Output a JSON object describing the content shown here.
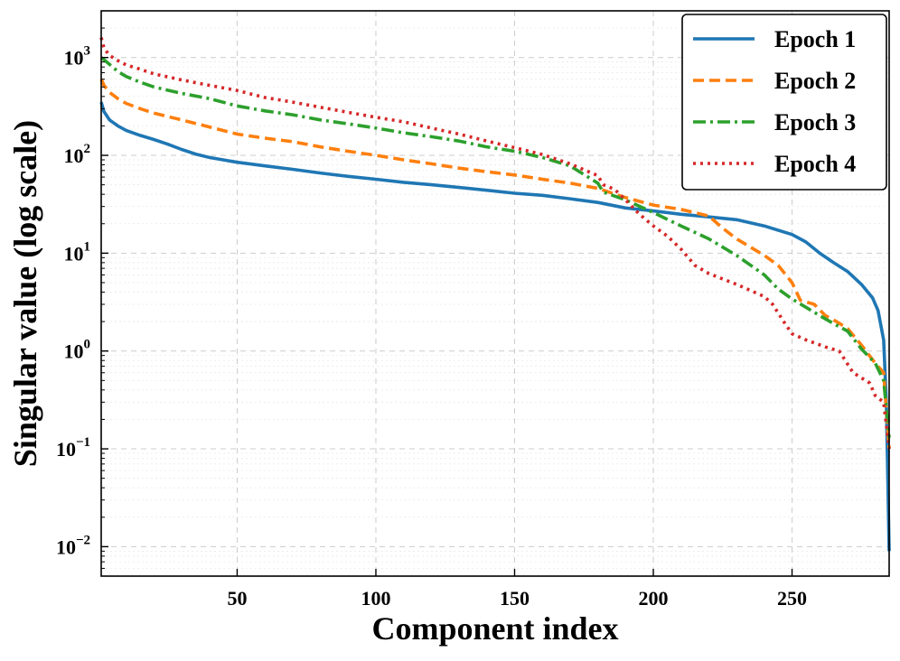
{
  "chart_data": {
    "type": "line",
    "title": "",
    "xlabel": "Component index",
    "ylabel": "Singular value (log scale)",
    "yscale": "log",
    "xlim": [
      1,
      285
    ],
    "ylim": [
      0.005,
      3000
    ],
    "xticks": [
      50,
      100,
      150,
      200,
      250
    ],
    "yticks": [
      {
        "value": 0.01,
        "base": "10",
        "exp": "−2"
      },
      {
        "value": 0.1,
        "base": "10",
        "exp": "−1"
      },
      {
        "value": 1,
        "base": "10",
        "exp": "0"
      },
      {
        "value": 10,
        "base": "10",
        "exp": "1"
      },
      {
        "value": 100,
        "base": "10",
        "exp": "2"
      },
      {
        "value": 1000,
        "base": "10",
        "exp": "3"
      }
    ],
    "grid": true,
    "legend_position": "top-right",
    "series": [
      {
        "name": "Epoch 1",
        "color": "#1f77b4",
        "dash": "solid",
        "points": [
          [
            1,
            350
          ],
          [
            2,
            280
          ],
          [
            4,
            230
          ],
          [
            7,
            200
          ],
          [
            10,
            180
          ],
          [
            15,
            160
          ],
          [
            20,
            145
          ],
          [
            25,
            130
          ],
          [
            30,
            115
          ],
          [
            35,
            103
          ],
          [
            40,
            95
          ],
          [
            50,
            85
          ],
          [
            60,
            78
          ],
          [
            70,
            72
          ],
          [
            80,
            66
          ],
          [
            90,
            61
          ],
          [
            100,
            57
          ],
          [
            110,
            53
          ],
          [
            120,
            50
          ],
          [
            130,
            47
          ],
          [
            140,
            44
          ],
          [
            150,
            41
          ],
          [
            160,
            39
          ],
          [
            170,
            36
          ],
          [
            180,
            33
          ],
          [
            190,
            29
          ],
          [
            200,
            27
          ],
          [
            210,
            25
          ],
          [
            220,
            23.5
          ],
          [
            230,
            22
          ],
          [
            240,
            19
          ],
          [
            250,
            15.5
          ],
          [
            255,
            13
          ],
          [
            260,
            10
          ],
          [
            265,
            8
          ],
          [
            270,
            6.5
          ],
          [
            275,
            4.8
          ],
          [
            279,
            3.5
          ],
          [
            281,
            2.6
          ],
          [
            283,
            1.3
          ],
          [
            284,
            0.3
          ],
          [
            285,
            0.009
          ]
        ]
      },
      {
        "name": "Epoch 2",
        "color": "#ff7f0e",
        "dash": "dashed",
        "points": [
          [
            1,
            600
          ],
          [
            2,
            520
          ],
          [
            4,
            440
          ],
          [
            7,
            380
          ],
          [
            10,
            340
          ],
          [
            15,
            300
          ],
          [
            20,
            270
          ],
          [
            30,
            230
          ],
          [
            40,
            195
          ],
          [
            50,
            165
          ],
          [
            60,
            150
          ],
          [
            70,
            138
          ],
          [
            80,
            122
          ],
          [
            90,
            110
          ],
          [
            100,
            100
          ],
          [
            110,
            90
          ],
          [
            120,
            82
          ],
          [
            130,
            74
          ],
          [
            140,
            68
          ],
          [
            150,
            63
          ],
          [
            160,
            57
          ],
          [
            170,
            52
          ],
          [
            180,
            46
          ],
          [
            190,
            37
          ],
          [
            200,
            31
          ],
          [
            210,
            28
          ],
          [
            220,
            24
          ],
          [
            225,
            18
          ],
          [
            230,
            14
          ],
          [
            240,
            9.5
          ],
          [
            245,
            7.5
          ],
          [
            250,
            5
          ],
          [
            253,
            3.3
          ],
          [
            258,
            3
          ],
          [
            262,
            2.3
          ],
          [
            266,
            2
          ],
          [
            270,
            1.7
          ],
          [
            275,
            1.15
          ],
          [
            280,
            0.75
          ],
          [
            283,
            0.6
          ],
          [
            285,
            0.1
          ]
        ]
      },
      {
        "name": "Epoch 3",
        "color": "#2ca02c",
        "dash": "dashdot",
        "points": [
          [
            1,
            1000
          ],
          [
            2,
            950
          ],
          [
            4,
            850
          ],
          [
            7,
            720
          ],
          [
            10,
            640
          ],
          [
            15,
            560
          ],
          [
            20,
            500
          ],
          [
            30,
            430
          ],
          [
            40,
            380
          ],
          [
            50,
            320
          ],
          [
            60,
            285
          ],
          [
            70,
            260
          ],
          [
            80,
            230
          ],
          [
            90,
            210
          ],
          [
            100,
            190
          ],
          [
            110,
            170
          ],
          [
            120,
            155
          ],
          [
            130,
            140
          ],
          [
            140,
            122
          ],
          [
            150,
            110
          ],
          [
            160,
            95
          ],
          [
            170,
            78
          ],
          [
            180,
            52
          ],
          [
            182,
            42
          ],
          [
            190,
            35
          ],
          [
            200,
            26
          ],
          [
            210,
            19
          ],
          [
            220,
            14
          ],
          [
            230,
            9.5
          ],
          [
            240,
            6
          ],
          [
            245,
            4.3
          ],
          [
            250,
            3.4
          ],
          [
            255,
            2.8
          ],
          [
            260,
            2.3
          ],
          [
            265,
            1.9
          ],
          [
            270,
            1.6
          ],
          [
            275,
            1.05
          ],
          [
            280,
            0.75
          ],
          [
            283,
            0.5
          ],
          [
            285,
            0.13
          ]
        ]
      },
      {
        "name": "Epoch 4",
        "color": "#d62728",
        "dash": "dotted",
        "points": [
          [
            1,
            1600
          ],
          [
            2,
            1250
          ],
          [
            4,
            1050
          ],
          [
            7,
            930
          ],
          [
            10,
            840
          ],
          [
            15,
            760
          ],
          [
            20,
            680
          ],
          [
            30,
            590
          ],
          [
            40,
            520
          ],
          [
            50,
            460
          ],
          [
            60,
            390
          ],
          [
            70,
            350
          ],
          [
            80,
            310
          ],
          [
            90,
            275
          ],
          [
            100,
            245
          ],
          [
            110,
            220
          ],
          [
            120,
            190
          ],
          [
            130,
            165
          ],
          [
            140,
            140
          ],
          [
            150,
            120
          ],
          [
            160,
            102
          ],
          [
            170,
            82
          ],
          [
            180,
            62
          ],
          [
            182,
            50
          ],
          [
            186,
            45
          ],
          [
            190,
            35
          ],
          [
            195,
            25
          ],
          [
            200,
            19
          ],
          [
            205,
            15
          ],
          [
            210,
            11
          ],
          [
            215,
            7.5
          ],
          [
            220,
            6.2
          ],
          [
            230,
            4.8
          ],
          [
            240,
            3.6
          ],
          [
            243,
            3
          ],
          [
            247,
            2
          ],
          [
            250,
            1.5
          ],
          [
            255,
            1.3
          ],
          [
            262,
            1.1
          ],
          [
            267,
            1.0
          ],
          [
            272,
            0.6
          ],
          [
            278,
            0.47
          ],
          [
            280,
            0.35
          ],
          [
            283,
            0.3
          ],
          [
            285,
            0.1
          ]
        ]
      }
    ]
  }
}
